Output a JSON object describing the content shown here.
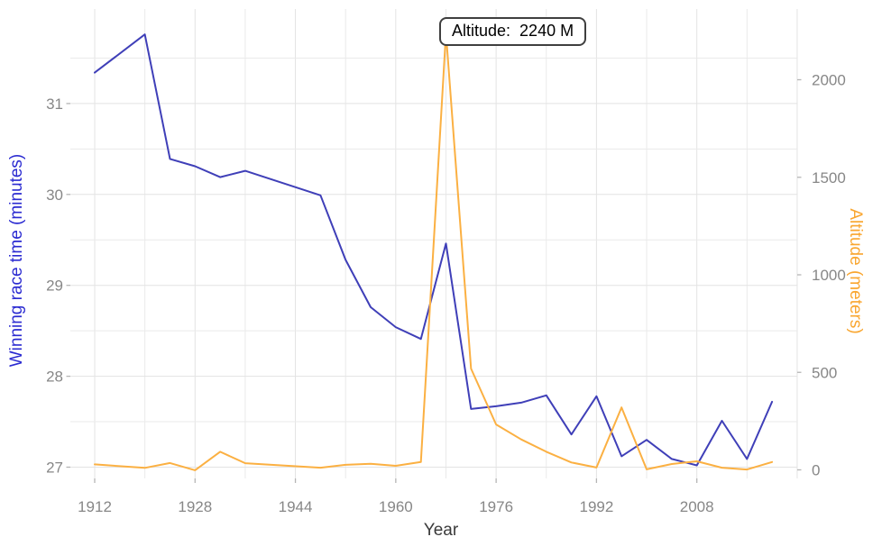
{
  "axes": {
    "x_title": "Year",
    "left_title": "Winning race time (minutes)",
    "right_title": "Altitude (meters)"
  },
  "tooltip": {
    "text": "Altitude:  2240 M"
  },
  "colors": {
    "left_axis_title": "#2b2bd1",
    "right_axis_title": "#f9a630",
    "time_line": "#3f3fb8",
    "altitude_line": "#fbb042",
    "tick_label": "#878787",
    "grid_major": "#e3e3e3",
    "grid_minor": "#eaeaea",
    "tick_mark": "#b5b5b5"
  },
  "chart_data": {
    "type": "line",
    "title": "",
    "xlabel": "Year",
    "ylabel_left": "Winning race time (minutes)",
    "ylabel_right": "Altitude (meters)",
    "x": [
      1912,
      1920,
      1924,
      1928,
      1932,
      1936,
      1948,
      1952,
      1956,
      1960,
      1964,
      1968,
      1972,
      1976,
      1980,
      1984,
      1988,
      1992,
      1996,
      2000,
      2004,
      2008,
      2012,
      2016,
      2020
    ],
    "series": [
      {
        "name": "Winning race time (minutes)",
        "yaxis": "left",
        "color": "#3f3fb8",
        "values": [
          31.34,
          31.76,
          30.39,
          30.31,
          30.19,
          30.26,
          29.99,
          29.28,
          28.76,
          28.54,
          28.41,
          29.46,
          27.64,
          27.67,
          27.71,
          27.79,
          27.36,
          27.78,
          27.12,
          27.3,
          27.09,
          27.02,
          27.51,
          27.09,
          27.72
        ]
      },
      {
        "name": "Altitude (meters)",
        "yaxis": "right",
        "color": "#fbb042",
        "values": [
          28,
          10,
          35,
          -2,
          93,
          34,
          11,
          26,
          31,
          21,
          40,
          2240,
          519,
          233,
          156,
          93,
          38,
          12,
          320,
          3,
          30,
          44,
          11,
          2,
          40
        ]
      }
    ],
    "x_ticks": [
      1912,
      1928,
      1944,
      1960,
      1976,
      1992,
      2008
    ],
    "x_grid_step": 8,
    "x_grid_end": 2024,
    "y_ticks_left": [
      27,
      28,
      29,
      30,
      31
    ],
    "y_grid_step_left": 0.5,
    "y_grid_top_left": 31.5,
    "y_ticks_right": [
      0,
      500,
      1000,
      1500,
      2000
    ],
    "xlim": [
      1908,
      2024.2
    ],
    "ylim_left": [
      26.88,
      32.05
    ],
    "ylim_right": [
      -44,
      2364
    ],
    "grid": true,
    "legend": "none",
    "annotation": {
      "label": "Altitude:  2240 M",
      "x": 1968,
      "y_right": 2240
    }
  }
}
